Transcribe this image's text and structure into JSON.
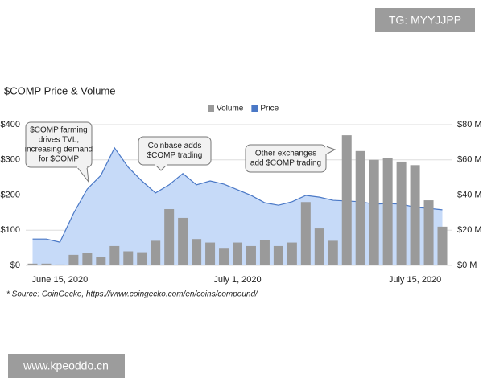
{
  "watermark_top": "TG: MYYJJPP",
  "watermark_bottom": "www.kpeoddo.cn",
  "chart_data": {
    "type": "bar-area",
    "title": "$COMP Price & Volume",
    "source": "* Source: CoinGecko, https://www.coingecko.com/en/coins/compound/",
    "categories": [
      null,
      null,
      "June 15, 2020",
      null,
      null,
      null,
      null,
      null,
      null,
      null,
      null,
      null,
      null,
      null,
      null,
      "July 1, 2020",
      null,
      null,
      null,
      null,
      null,
      null,
      null,
      null,
      null,
      null,
      null,
      null,
      "July 15, 2020",
      null,
      null
    ],
    "series": [
      {
        "name": "Volume",
        "color": "#9a9a9a",
        "axis": "y2",
        "kind": "bar",
        "values": [
          1,
          1,
          0.5,
          6,
          7,
          5,
          11,
          8,
          7.5,
          14,
          32,
          27,
          15,
          13,
          9.5,
          13,
          11,
          14.5,
          11,
          13,
          36,
          21,
          14,
          74,
          65,
          60,
          61,
          59,
          57,
          37,
          22
        ]
      },
      {
        "name": "Price",
        "color": "#4a78c6",
        "fill": "#c6daf8",
        "axis": "y",
        "kind": "area",
        "values": [
          75,
          75,
          66,
          148,
          217,
          256,
          334,
          279,
          240,
          206,
          229,
          261,
          229,
          240,
          231,
          215,
          199,
          178,
          171,
          181,
          199,
          194,
          185,
          183,
          181,
          174,
          176,
          174,
          165,
          162,
          158
        ]
      }
    ],
    "ylim": [
      0,
      400
    ],
    "yticks": [
      {
        "value": 0,
        "label": "$0"
      },
      {
        "value": 100,
        "label": "$100"
      },
      {
        "value": 200,
        "label": "$200"
      },
      {
        "value": 300,
        "label": "$300"
      },
      {
        "value": 400,
        "label": "$400"
      }
    ],
    "y2lim": [
      0,
      80
    ],
    "y2ticks": [
      {
        "value": 0,
        "label": "$0 M"
      },
      {
        "value": 20,
        "label": "$20 M"
      },
      {
        "value": 40,
        "label": "$40 M"
      },
      {
        "value": 60,
        "label": "$60 M"
      },
      {
        "value": 80,
        "label": "$80 M"
      }
    ],
    "grid": true,
    "legend": "top",
    "annotations": [
      [
        "$COMP farming",
        "drives TVL,",
        "increasing demand",
        "for $COMP"
      ],
      [
        "Coinbase adds",
        "$COMP trading"
      ],
      [
        "Other exchanges",
        "add $COMP trading"
      ]
    ]
  }
}
